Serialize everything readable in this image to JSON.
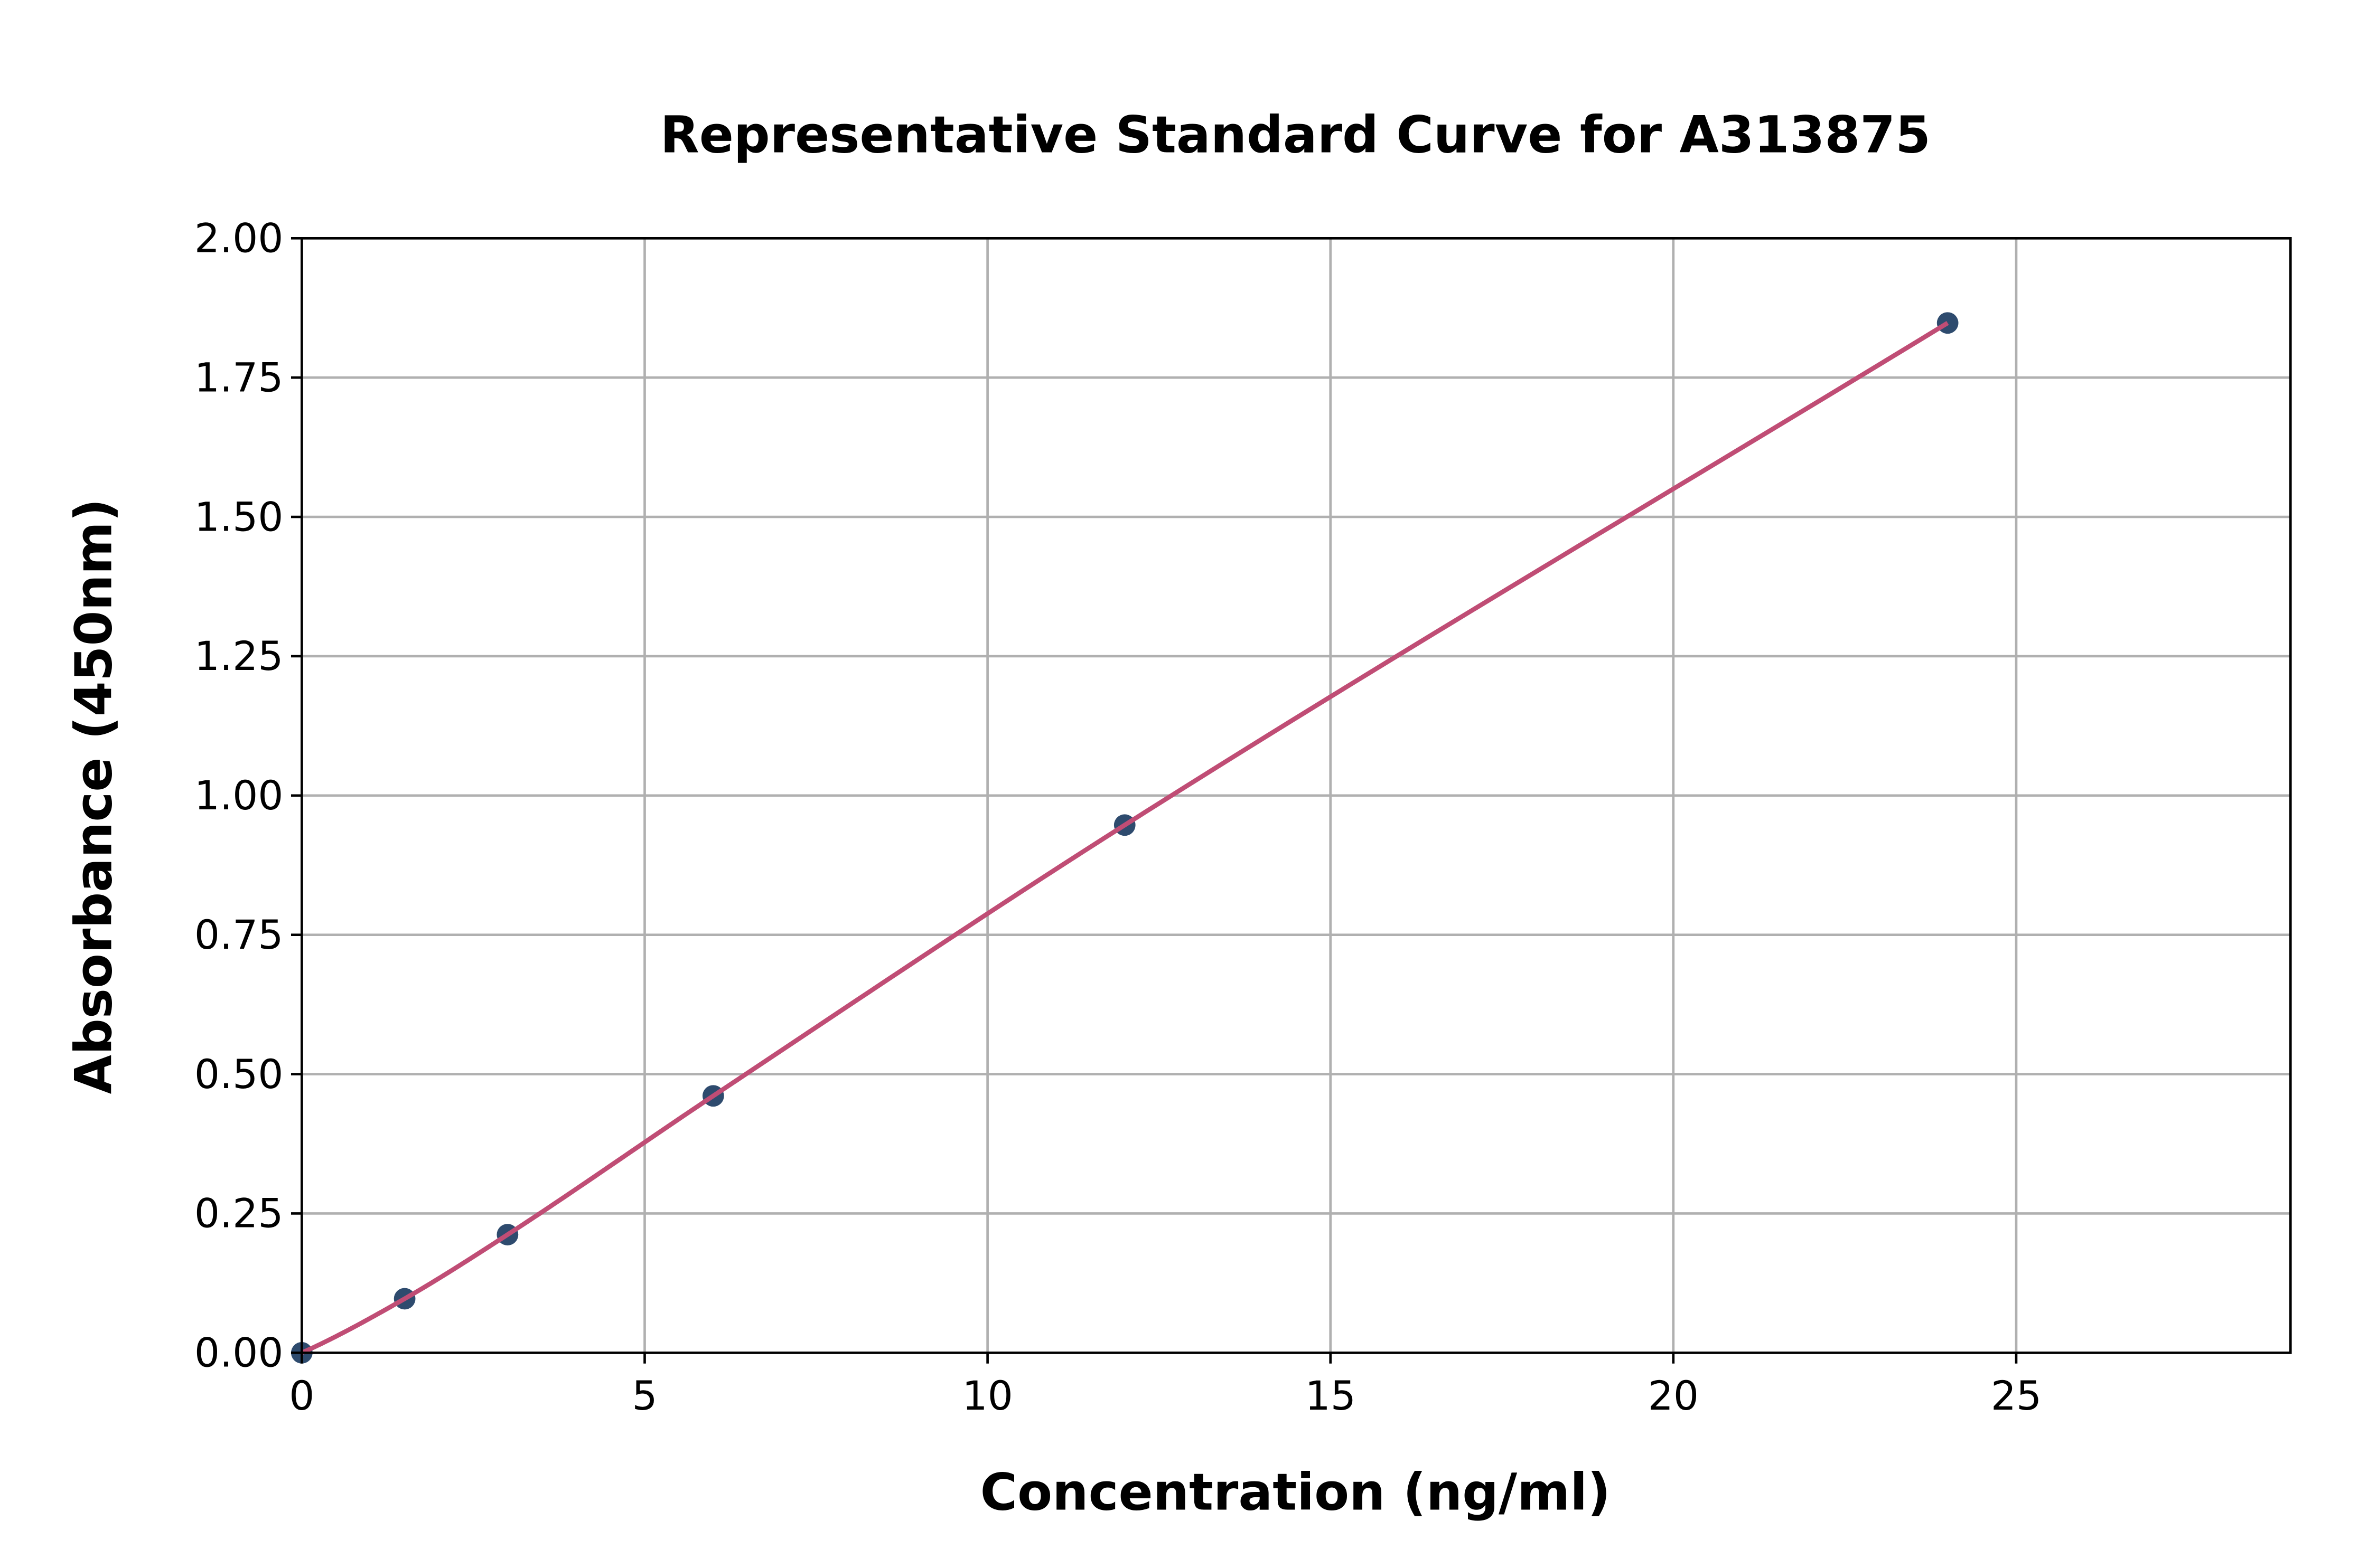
{
  "chart_data": {
    "type": "scatter",
    "title": "Representative Standard Curve for A313875",
    "xlabel": "Concentration (ng/ml)",
    "ylabel": "Absorbance (450nm)",
    "xlim": [
      0,
      29
    ],
    "ylim": [
      0,
      2.0
    ],
    "xticks": [
      "0",
      "5",
      "10",
      "15",
      "20",
      "25"
    ],
    "yticks": [
      "0.00",
      "0.25",
      "0.50",
      "0.75",
      "1.00",
      "1.25",
      "1.50",
      "1.75",
      "2.00"
    ],
    "grid": true,
    "points": {
      "x": [
        0,
        1.5,
        3,
        6,
        12,
        24
      ],
      "y": [
        0.0,
        0.097,
        0.212,
        0.461,
        0.947,
        1.848
      ]
    },
    "fit_curve": true,
    "colors": {
      "points": "#2e4b6e",
      "curve": "#c04d75",
      "grid": "#b0b0b0"
    }
  }
}
